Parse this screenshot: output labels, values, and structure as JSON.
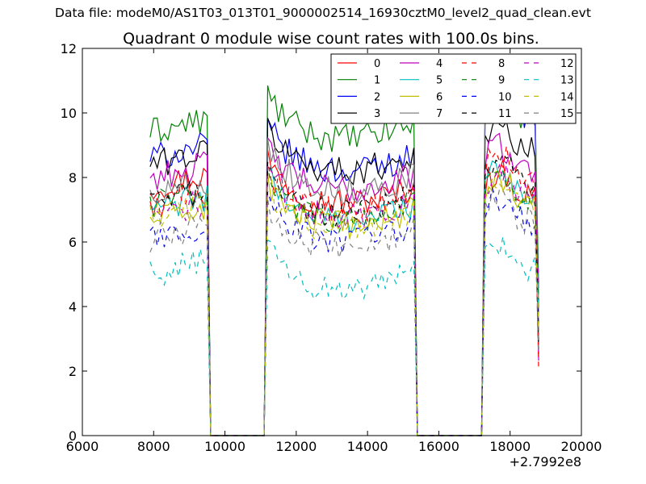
{
  "figure": {
    "suptitle": "Data file: modeM0/AS1T03_013T01_9000002514_16930cztM0_level2_quad_clean.evt"
  },
  "chart_data": {
    "type": "line",
    "title": "Quadrant 0 module wise count rates with 100.0s bins.",
    "xlabel": "",
    "ylabel": "",
    "x_offset_label": "+2.7992e8",
    "xlim": [
      6000,
      20000
    ],
    "ylim": [
      0,
      12
    ],
    "xticks": [
      6000,
      8000,
      10000,
      12000,
      14000,
      16000,
      18000,
      20000
    ],
    "xtick_labels": [
      "6000",
      "8000",
      "10000",
      "12000",
      "14000",
      "16000",
      "18000",
      "20000"
    ],
    "yticks": [
      0,
      2,
      4,
      6,
      8,
      10,
      12
    ],
    "ytick_labels": [
      "0",
      "2",
      "4",
      "6",
      "8",
      "10",
      "12"
    ],
    "grid": false,
    "legend_position": "top-right",
    "legend_columns": 4,
    "segments": [
      {
        "start": 7900,
        "end": 9500,
        "fall_end": 9600
      },
      {
        "rise_start": 11100,
        "start": 11200,
        "end": 15300,
        "fall_end": 15400
      },
      {
        "rise_start": 17200,
        "start": 17300,
        "end": 18700,
        "fall_end": 18800
      }
    ],
    "gap_zero_ranges": [
      [
        9600,
        11100
      ],
      [
        15400,
        17200
      ]
    ],
    "series": [
      {
        "name": "0",
        "color": "#ff0000",
        "dash": "solid",
        "levels": [
          7.9,
          7.6,
          7.8
        ]
      },
      {
        "name": "1",
        "color": "#008000",
        "dash": "solid",
        "levels": [
          9.6,
          9.6,
          10.2
        ]
      },
      {
        "name": "2",
        "color": "#0000ff",
        "dash": "solid",
        "levels": [
          8.8,
          8.6,
          10.3
        ]
      },
      {
        "name": "3",
        "color": "#000000",
        "dash": "solid",
        "levels": [
          8.6,
          8.6,
          9.2
        ]
      },
      {
        "name": "4",
        "color": "#bf00bf",
        "dash": "solid",
        "levels": [
          8.2,
          8.0,
          8.6
        ]
      },
      {
        "name": "5",
        "color": "#00bfbf",
        "dash": "solid",
        "levels": [
          7.2,
          7.1,
          7.8
        ]
      },
      {
        "name": "6",
        "color": "#bfbf00",
        "dash": "solid",
        "levels": [
          6.9,
          6.9,
          7.6
        ]
      },
      {
        "name": "7",
        "color": "#808080",
        "dash": "solid",
        "levels": [
          7.7,
          8.0,
          10.6
        ]
      },
      {
        "name": "8",
        "color": "#ff0000",
        "dash": "dashed",
        "levels": [
          7.3,
          7.3,
          8.3
        ]
      },
      {
        "name": "9",
        "color": "#008000",
        "dash": "dashed",
        "levels": [
          7.4,
          7.1,
          7.7
        ]
      },
      {
        "name": "10",
        "color": "#0000ff",
        "dash": "dashed",
        "levels": [
          6.3,
          6.4,
          7.0
        ]
      },
      {
        "name": "11",
        "color": "#000000",
        "dash": "dashed",
        "levels": [
          7.4,
          7.3,
          8.2
        ]
      },
      {
        "name": "12",
        "color": "#bf00bf",
        "dash": "dashed",
        "levels": [
          7.0,
          7.2,
          7.8
        ]
      },
      {
        "name": "13",
        "color": "#00bfbf",
        "dash": "dashed",
        "levels": [
          5.2,
          4.9,
          5.6
        ]
      },
      {
        "name": "14",
        "color": "#bfbf00",
        "dash": "dashed",
        "levels": [
          6.9,
          6.8,
          7.5
        ]
      },
      {
        "name": "15",
        "color": "#808080",
        "dash": "dashed",
        "levels": [
          6.3,
          6.2,
          7.0
        ]
      }
    ]
  }
}
